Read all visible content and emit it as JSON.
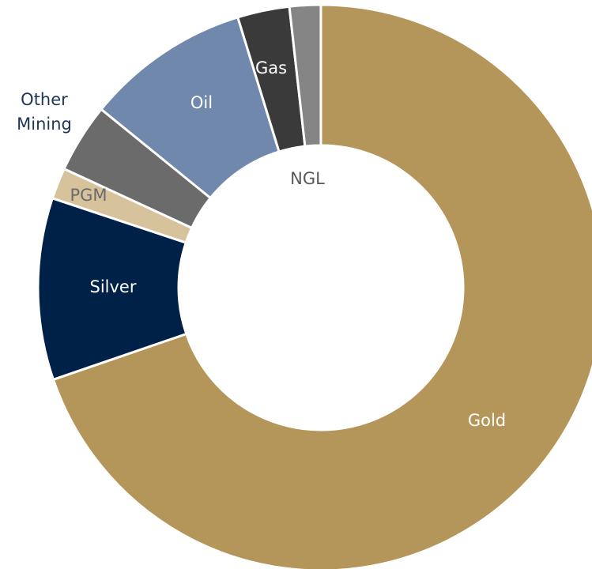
{
  "chart_data": {
    "type": "pie",
    "variant": "donut",
    "title": "",
    "slices": [
      {
        "label": "Gold",
        "value": 70.5,
        "color": "#b5965a",
        "label_color": "#ffffff"
      },
      {
        "label": "Silver",
        "value": 10.5,
        "color": "#002147",
        "label_color": "#ffffff"
      },
      {
        "label": "PGM",
        "value": 1.8,
        "color": "#d6c29b",
        "label_color": "#6b6b6b"
      },
      {
        "label": "Other Mining",
        "value": 4.0,
        "color": "#6b6b6b",
        "label_color": "#1d3557"
      },
      {
        "label": "Oil",
        "value": 9.5,
        "color": "#6f88ab",
        "label_color": "#ffffff"
      },
      {
        "label": "Gas",
        "value": 3.0,
        "color": "#3a3a3a",
        "label_color": "#ffffff"
      },
      {
        "label": "NGL",
        "value": 1.8,
        "color": "#858585",
        "label_color": "#595959"
      }
    ]
  }
}
